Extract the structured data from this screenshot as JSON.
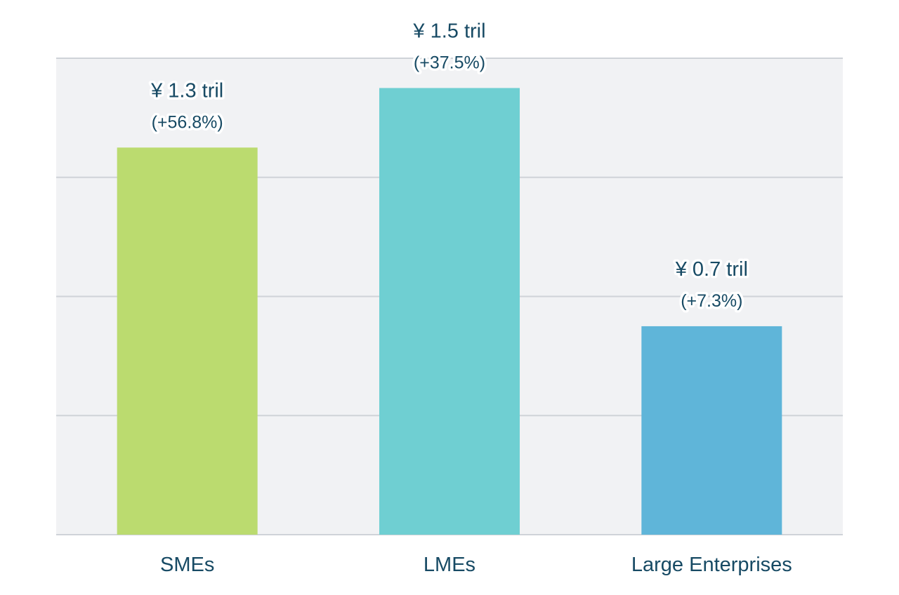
{
  "chart_data": {
    "type": "bar",
    "title": "",
    "xlabel": "",
    "ylabel": "",
    "categories": [
      "SMEs",
      "LMEs",
      "Large Enterprises"
    ],
    "values": [
      1.3,
      1.5,
      0.7
    ],
    "value_labels": [
      "¥ 1.3 tril",
      "¥ 1.5 tril",
      "¥ 0.7 tril"
    ],
    "change_labels": [
      "(+56.8%)",
      "(+37.5%)",
      "(+7.3%)"
    ],
    "colors": [
      "#bbdb6f",
      "#6fcfd2",
      "#5fb5d9"
    ],
    "ylim": [
      0,
      1.6
    ],
    "y_gridlines": [
      0,
      0.4,
      0.8,
      1.2,
      1.6
    ],
    "grid": true,
    "legend": "none",
    "plot_background": "#f1f2f4",
    "grid_color": "#cfd3d8",
    "text_color": "#174a64"
  }
}
